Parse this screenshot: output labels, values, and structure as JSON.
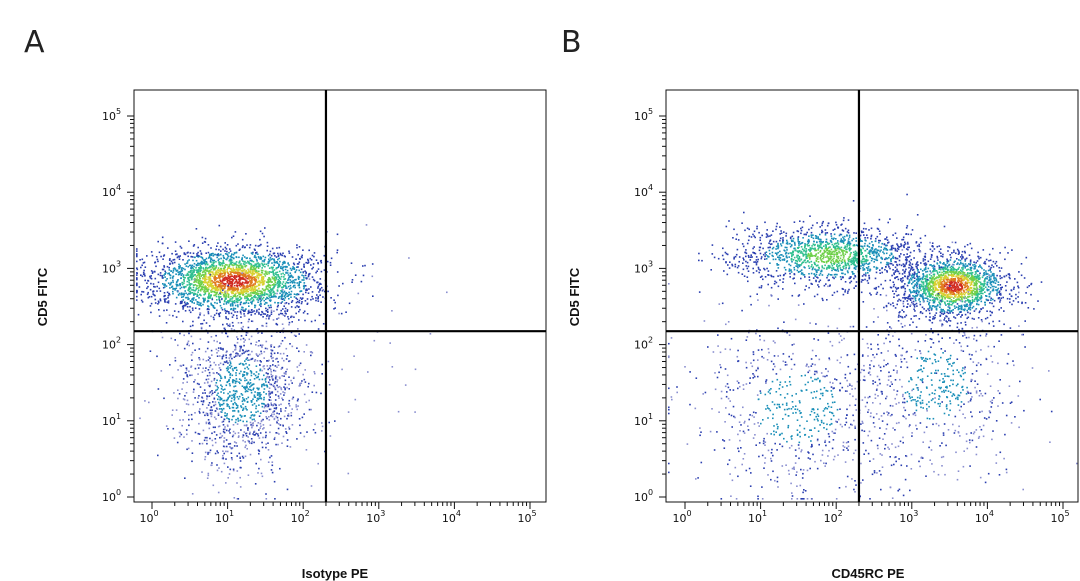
{
  "chart_data": [
    {
      "type": "scatter",
      "panel_label": "A",
      "xlabel": "Isotype PE",
      "ylabel": "CD5 FITC",
      "xscale": "log",
      "yscale": "log",
      "xlim": [
        1,
        100000
      ],
      "ylim": [
        1,
        100000
      ],
      "xticks": [
        {
          "base": "10",
          "exp": "0",
          "value": 1
        },
        {
          "base": "10",
          "exp": "1",
          "value": 10
        },
        {
          "base": "10",
          "exp": "2",
          "value": 100
        },
        {
          "base": "10",
          "exp": "3",
          "value": 1000
        },
        {
          "base": "10",
          "exp": "4",
          "value": 10000
        },
        {
          "base": "10",
          "exp": "5",
          "value": 100000
        }
      ],
      "yticks": [
        {
          "base": "10",
          "exp": "0",
          "value": 1
        },
        {
          "base": "10",
          "exp": "1",
          "value": 10
        },
        {
          "base": "10",
          "exp": "2",
          "value": 100
        },
        {
          "base": "10",
          "exp": "3",
          "value": 1000
        },
        {
          "base": "10",
          "exp": "4",
          "value": 10000
        },
        {
          "base": "10",
          "exp": "5",
          "value": 100000
        }
      ],
      "quadrant_gate": {
        "x": 200,
        "y": 150
      },
      "clusters": [
        {
          "x_center": 12,
          "y_center": 700,
          "x_spread_decades": 0.55,
          "y_spread_decades": 0.22,
          "count": 2600,
          "density": "high"
        },
        {
          "x_center": 15,
          "y_center": 25,
          "x_spread_decades": 0.45,
          "y_spread_decades": 0.55,
          "count": 1300,
          "density": "low"
        },
        {
          "x_center": 800,
          "y_center": 150,
          "x_spread_decades": 0.6,
          "y_spread_decades": 0.9,
          "count": 25,
          "density": "sparse"
        }
      ],
      "grid": false
    },
    {
      "type": "scatter",
      "panel_label": "B",
      "xlabel": "CD45RC PE",
      "ylabel": "CD5 FITC",
      "xscale": "log",
      "yscale": "log",
      "xlim": [
        1,
        100000
      ],
      "ylim": [
        1,
        100000
      ],
      "xticks": [
        {
          "base": "10",
          "exp": "0",
          "value": 1
        },
        {
          "base": "10",
          "exp": "1",
          "value": 10
        },
        {
          "base": "10",
          "exp": "2",
          "value": 100
        },
        {
          "base": "10",
          "exp": "3",
          "value": 1000
        },
        {
          "base": "10",
          "exp": "4",
          "value": 10000
        },
        {
          "base": "10",
          "exp": "5",
          "value": 100000
        }
      ],
      "yticks": [
        {
          "base": "10",
          "exp": "0",
          "value": 1
        },
        {
          "base": "10",
          "exp": "1",
          "value": 10
        },
        {
          "base": "10",
          "exp": "2",
          "value": 100
        },
        {
          "base": "10",
          "exp": "3",
          "value": 1000
        },
        {
          "base": "10",
          "exp": "4",
          "value": 10000
        },
        {
          "base": "10",
          "exp": "5",
          "value": 100000
        }
      ],
      "quadrant_gate": {
        "x": 200,
        "y": 150
      },
      "clusters": [
        {
          "x_center": 3500,
          "y_center": 600,
          "x_spread_decades": 0.35,
          "y_spread_decades": 0.2,
          "count": 1700,
          "density": "high"
        },
        {
          "x_center": 80,
          "y_center": 1500,
          "x_spread_decades": 0.6,
          "y_spread_decades": 0.2,
          "count": 1400,
          "density": "medium"
        },
        {
          "x_center": 30,
          "y_center": 15,
          "x_spread_decades": 0.7,
          "y_spread_decades": 0.6,
          "count": 700,
          "density": "low"
        },
        {
          "x_center": 2000,
          "y_center": 30,
          "x_spread_decades": 0.55,
          "y_spread_decades": 0.6,
          "count": 600,
          "density": "low"
        }
      ],
      "grid": false
    }
  ],
  "colors": {
    "axis": "#111111",
    "gate_line": "#000000",
    "density_ramp": [
      "#8a8fd0",
      "#2b3fb0",
      "#1a8fb8",
      "#2fbf8f",
      "#6fd04a",
      "#d8d030",
      "#e07a20",
      "#d02a20"
    ]
  }
}
